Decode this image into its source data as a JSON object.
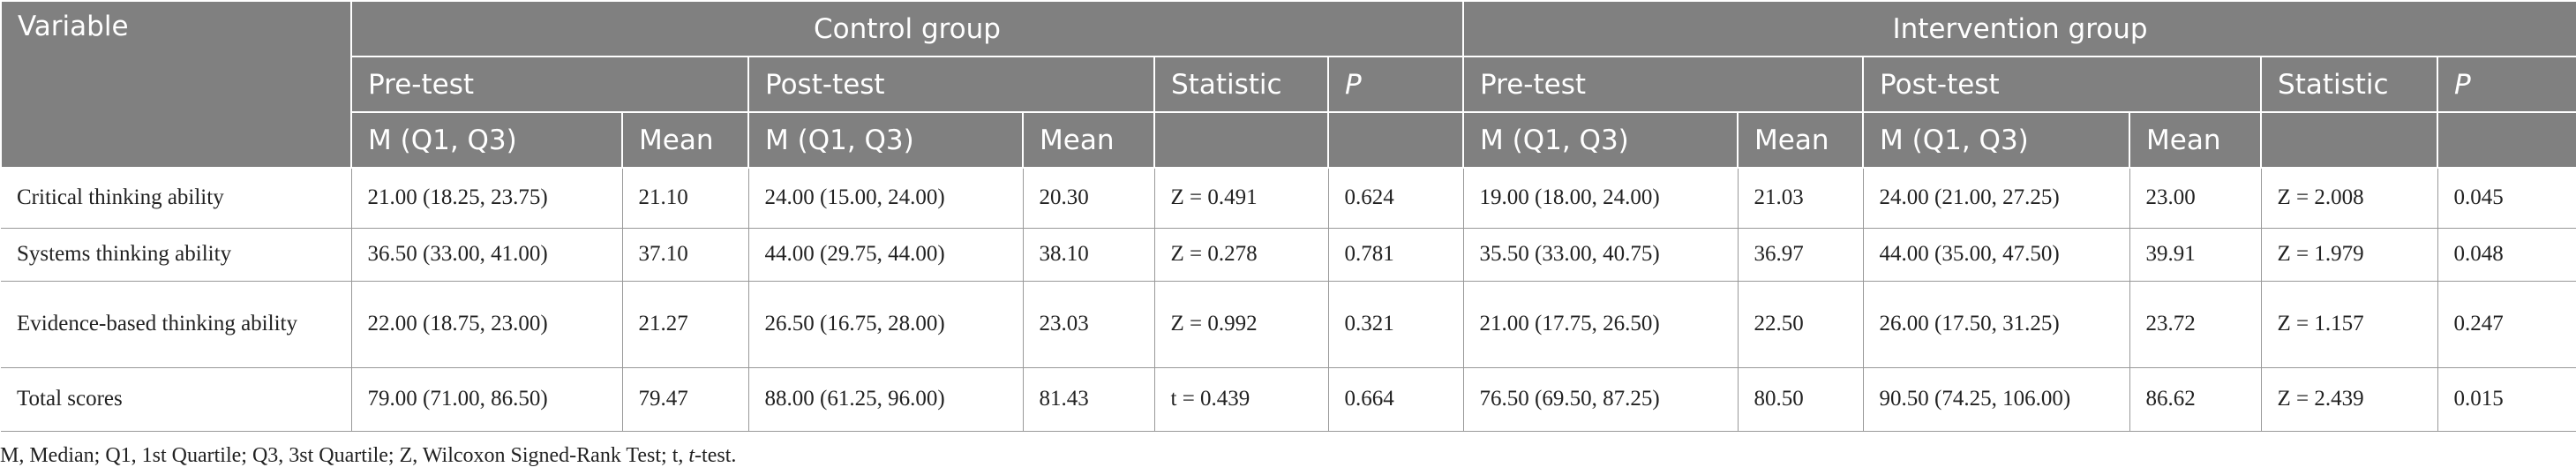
{
  "table": {
    "header": {
      "variable": "Variable",
      "groups": [
        "Control group",
        "Intervention group"
      ],
      "phases": [
        "Pre-test",
        "Post-test"
      ],
      "statistic": "Statistic",
      "p": "P",
      "measures": [
        "M (Q1, Q3)",
        "Mean"
      ]
    },
    "rows": [
      [
        "Critical thinking ability",
        "21.00 (18.25, 23.75)",
        "21.10",
        "24.00 (15.00, 24.00)",
        "20.30",
        "Z = 0.491",
        "0.624",
        "19.00 (18.00, 24.00)",
        "21.03",
        "24.00 (21.00, 27.25)",
        "23.00",
        "Z = 2.008",
        "0.045"
      ],
      [
        "Systems thinking ability",
        "36.50 (33.00, 41.00)",
        "37.10",
        "44.00 (29.75, 44.00)",
        "38.10",
        "Z = 0.278",
        "0.781",
        "35.50 (33.00, 40.75)",
        "36.97",
        "44.00 (35.00, 47.50)",
        "39.91",
        "Z = 1.979",
        "0.048"
      ],
      [
        "Evidence-based thinking ability",
        "22.00 (18.75, 23.00)",
        "21.27",
        "26.50 (16.75, 28.00)",
        "23.03",
        "Z = 0.992",
        "0.321",
        "21.00 (17.75, 26.50)",
        "22.50",
        "26.00 (17.50, 31.25)",
        "23.72",
        "Z = 1.157",
        "0.247"
      ],
      [
        "Total scores",
        "79.00 (71.00, 86.50)",
        "79.47",
        "88.00 (61.25, 96.00)",
        "81.43",
        "t = 0.439",
        "0.664",
        "76.50 (69.50, 87.25)",
        "80.50",
        "90.50 (74.25, 106.00)",
        "86.62",
        "Z = 2.439",
        "0.015"
      ]
    ]
  },
  "footnote": [
    "M, Median; Q1, 1st Quartile; Q3, 3st Quartile; Z, Wilcoxon Signed-Rank Test; t, ",
    "t",
    "-test."
  ]
}
